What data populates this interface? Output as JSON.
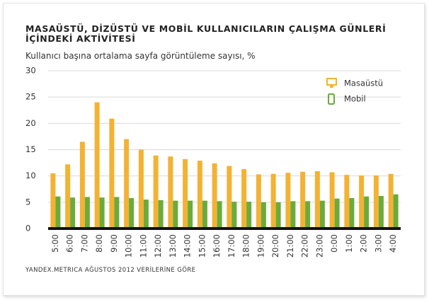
{
  "chart_data": {
    "type": "bar",
    "title": "MASAÜSTÜ, DİZÜSTÜ VE MOBİL KULLANICILARIN ÇALIŞMA GÜNLERİ İÇİNDEKİ AKTİVİTESİ",
    "subtitle": "Kullanıcı başına ortalama sayfa görüntüleme sayısı,  %",
    "source": "YANDEX.METRICA AĞUSTOS 2012 VERİLERİNE GÖRE",
    "categories": [
      "5:00",
      "6:00",
      "7:00",
      "8:00",
      "9:00",
      "10:00",
      "11:00",
      "12:00",
      "13:00",
      "14:00",
      "15:00",
      "16:00",
      "17:00",
      "18:00",
      "19:00",
      "20:00",
      "21:00",
      "22:00",
      "23:00",
      "0:00",
      "1:00",
      "2:00",
      "3:00",
      "4:00"
    ],
    "series": [
      {
        "name": "Masaüstü",
        "color": "#f4b232",
        "values": [
          10.5,
          12.2,
          16.5,
          24,
          20.9,
          17,
          15,
          13.9,
          13.7,
          13.2,
          12.9,
          12.4,
          11.9,
          11.3,
          10.3,
          10.4,
          10.6,
          10.8,
          10.9,
          10.7,
          10.2,
          10.1,
          10.1,
          10.4
        ]
      },
      {
        "name": "Mobil",
        "color": "#6aab3c",
        "values": [
          6.1,
          5.9,
          6.0,
          5.9,
          6.0,
          5.8,
          5.5,
          5.4,
          5.3,
          5.3,
          5.3,
          5.2,
          5.1,
          5.1,
          5.0,
          5.0,
          5.2,
          5.2,
          5.3,
          5.7,
          5.8,
          6.1,
          6.2,
          6.5
        ]
      }
    ],
    "ylim": [
      0,
      30
    ],
    "yticks": [
      0,
      5,
      10,
      15,
      20,
      25,
      30
    ],
    "grid": true,
    "legend": "upper right"
  }
}
